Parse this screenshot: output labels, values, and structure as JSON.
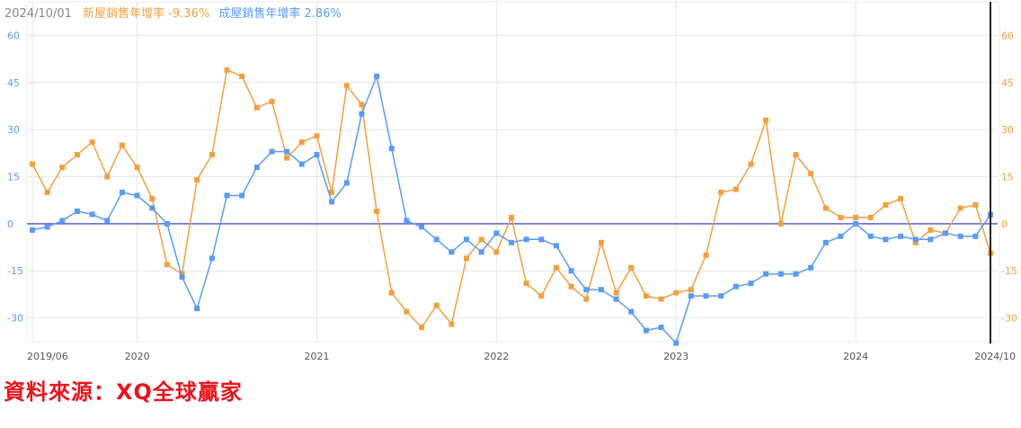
{
  "header": {
    "date": "2024/10/01",
    "new_home_label": "新屋銷售年增率",
    "new_home_value": "-9.36%",
    "existing_home_label": "成屋銷售年增率",
    "existing_home_value": "2.86%"
  },
  "source": "資料來源：XQ全球贏家",
  "colors": {
    "new_home": "#f0a040",
    "existing_home": "#5b9bf0",
    "zero_line": "#5a5fd8",
    "cursor": "#222222",
    "grid": "#e6e6e6"
  },
  "chart_data": {
    "type": "line",
    "x_start": "2019/06",
    "x_end": "2024/10",
    "x_tick_labels": [
      "2019/06",
      "2020",
      "2021",
      "2022",
      "2023",
      "2024",
      "2024/10"
    ],
    "y_ticks": [
      60,
      45,
      30,
      15,
      0,
      -15,
      -30
    ],
    "ylim": [
      -37,
      65
    ],
    "grid": true,
    "series": [
      {
        "name": "新屋銷售年增率",
        "axis": "right",
        "values": [
          19,
          10,
          18,
          22,
          26,
          15,
          25,
          18,
          8,
          -13,
          -16,
          14,
          22,
          49,
          47,
          37,
          39,
          21,
          26,
          28,
          10,
          44,
          38,
          4,
          -22,
          -28,
          -33,
          -26,
          -32,
          -11,
          -5,
          -9,
          2,
          -19,
          -23,
          -14,
          -20,
          -24,
          -6,
          -22,
          -14,
          -23,
          -24,
          -22,
          -21,
          -10,
          10,
          11,
          19,
          33,
          0,
          22,
          16,
          5,
          2,
          2,
          2,
          6,
          8,
          -6,
          -2,
          -3,
          5,
          6,
          -9.36
        ]
      },
      {
        "name": "成屋銷售年增率",
        "axis": "left",
        "values": [
          -2,
          -1,
          1,
          4,
          3,
          1,
          10,
          9,
          5,
          0,
          -17,
          -27,
          -11,
          9,
          9,
          18,
          23,
          23,
          19,
          22,
          7,
          13,
          35,
          47,
          24,
          1,
          -1,
          -5,
          -9,
          -5,
          -9,
          -3,
          -6,
          -5,
          -5,
          -7,
          -15,
          -21,
          -21,
          -24,
          -28,
          -34,
          -33,
          -38,
          -23,
          -23,
          -23,
          -20,
          -19,
          -16,
          -16,
          -16,
          -14,
          -6,
          -4,
          0,
          -4,
          -5,
          -4,
          -5,
          -5,
          -3,
          -4,
          -4,
          2.86
        ]
      }
    ]
  }
}
